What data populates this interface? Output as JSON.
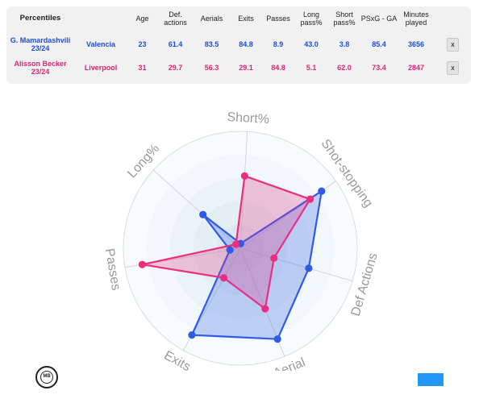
{
  "table": {
    "header_first": "Percentiles",
    "columns": [
      "Age",
      "Def. actions",
      "Aerials",
      "Exits",
      "Passes",
      "Long pass%",
      "Short pass%",
      "PSxG - GA",
      "Minutes played"
    ],
    "remove_label": "x",
    "rows": [
      {
        "player": "G. Mamardashvili 23/24",
        "team": "Valencia",
        "values": [
          "23",
          "61.4",
          "83.5",
          "84.8",
          "8.9",
          "43.0",
          "3.8",
          "85.4",
          "3656"
        ],
        "color": "#1f4fd6"
      },
      {
        "player": "Alisson Becker 23/24",
        "team": "Liverpool",
        "values": [
          "31",
          "29.7",
          "56.3",
          "29.1",
          "84.8",
          "5.1",
          "62.0",
          "73.4",
          "2847"
        ],
        "color": "#e0237a"
      }
    ]
  },
  "chart_data": {
    "type": "radar",
    "axes": [
      "Short%",
      "Shot-stopping",
      "Def Actions",
      "Aerial",
      "Exits",
      "Passes",
      "Long%"
    ],
    "range": [
      0,
      100
    ],
    "series": [
      {
        "name": "G. Mamardashvili 23/24",
        "color": "#2f5be8",
        "values": [
          4,
          85,
          61,
          84,
          85,
          9,
          43
        ]
      },
      {
        "name": "Alisson Becker 23/24",
        "color": "#ea2f80",
        "values": [
          62,
          73,
          30,
          56,
          29,
          85,
          5
        ]
      }
    ]
  },
  "logo": {
    "text": "MB"
  }
}
